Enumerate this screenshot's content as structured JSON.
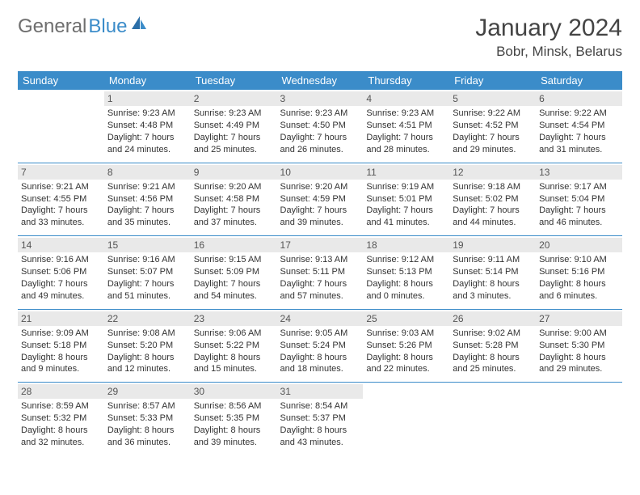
{
  "brand": {
    "word1": "General",
    "word2": "Blue"
  },
  "title": "January 2024",
  "location": "Bobr, Minsk, Belarus",
  "colors": {
    "header_bg": "#3b8cc9",
    "header_text": "#ffffff",
    "divider": "#3b8cc9",
    "daynum_bg": "#e9e9e9",
    "text": "#333333",
    "logo_gray": "#6e6e6e",
    "logo_blue": "#3b8cc9"
  },
  "weekdays": [
    "Sunday",
    "Monday",
    "Tuesday",
    "Wednesday",
    "Thursday",
    "Friday",
    "Saturday"
  ],
  "weeks": [
    [
      {
        "day": "",
        "sunrise": "",
        "sunset": "",
        "daylight": ""
      },
      {
        "day": "1",
        "sunrise": "Sunrise: 9:23 AM",
        "sunset": "Sunset: 4:48 PM",
        "daylight": "Daylight: 7 hours and 24 minutes."
      },
      {
        "day": "2",
        "sunrise": "Sunrise: 9:23 AM",
        "sunset": "Sunset: 4:49 PM",
        "daylight": "Daylight: 7 hours and 25 minutes."
      },
      {
        "day": "3",
        "sunrise": "Sunrise: 9:23 AM",
        "sunset": "Sunset: 4:50 PM",
        "daylight": "Daylight: 7 hours and 26 minutes."
      },
      {
        "day": "4",
        "sunrise": "Sunrise: 9:23 AM",
        "sunset": "Sunset: 4:51 PM",
        "daylight": "Daylight: 7 hours and 28 minutes."
      },
      {
        "day": "5",
        "sunrise": "Sunrise: 9:22 AM",
        "sunset": "Sunset: 4:52 PM",
        "daylight": "Daylight: 7 hours and 29 minutes."
      },
      {
        "day": "6",
        "sunrise": "Sunrise: 9:22 AM",
        "sunset": "Sunset: 4:54 PM",
        "daylight": "Daylight: 7 hours and 31 minutes."
      }
    ],
    [
      {
        "day": "7",
        "sunrise": "Sunrise: 9:21 AM",
        "sunset": "Sunset: 4:55 PM",
        "daylight": "Daylight: 7 hours and 33 minutes."
      },
      {
        "day": "8",
        "sunrise": "Sunrise: 9:21 AM",
        "sunset": "Sunset: 4:56 PM",
        "daylight": "Daylight: 7 hours and 35 minutes."
      },
      {
        "day": "9",
        "sunrise": "Sunrise: 9:20 AM",
        "sunset": "Sunset: 4:58 PM",
        "daylight": "Daylight: 7 hours and 37 minutes."
      },
      {
        "day": "10",
        "sunrise": "Sunrise: 9:20 AM",
        "sunset": "Sunset: 4:59 PM",
        "daylight": "Daylight: 7 hours and 39 minutes."
      },
      {
        "day": "11",
        "sunrise": "Sunrise: 9:19 AM",
        "sunset": "Sunset: 5:01 PM",
        "daylight": "Daylight: 7 hours and 41 minutes."
      },
      {
        "day": "12",
        "sunrise": "Sunrise: 9:18 AM",
        "sunset": "Sunset: 5:02 PM",
        "daylight": "Daylight: 7 hours and 44 minutes."
      },
      {
        "day": "13",
        "sunrise": "Sunrise: 9:17 AM",
        "sunset": "Sunset: 5:04 PM",
        "daylight": "Daylight: 7 hours and 46 minutes."
      }
    ],
    [
      {
        "day": "14",
        "sunrise": "Sunrise: 9:16 AM",
        "sunset": "Sunset: 5:06 PM",
        "daylight": "Daylight: 7 hours and 49 minutes."
      },
      {
        "day": "15",
        "sunrise": "Sunrise: 9:16 AM",
        "sunset": "Sunset: 5:07 PM",
        "daylight": "Daylight: 7 hours and 51 minutes."
      },
      {
        "day": "16",
        "sunrise": "Sunrise: 9:15 AM",
        "sunset": "Sunset: 5:09 PM",
        "daylight": "Daylight: 7 hours and 54 minutes."
      },
      {
        "day": "17",
        "sunrise": "Sunrise: 9:13 AM",
        "sunset": "Sunset: 5:11 PM",
        "daylight": "Daylight: 7 hours and 57 minutes."
      },
      {
        "day": "18",
        "sunrise": "Sunrise: 9:12 AM",
        "sunset": "Sunset: 5:13 PM",
        "daylight": "Daylight: 8 hours and 0 minutes."
      },
      {
        "day": "19",
        "sunrise": "Sunrise: 9:11 AM",
        "sunset": "Sunset: 5:14 PM",
        "daylight": "Daylight: 8 hours and 3 minutes."
      },
      {
        "day": "20",
        "sunrise": "Sunrise: 9:10 AM",
        "sunset": "Sunset: 5:16 PM",
        "daylight": "Daylight: 8 hours and 6 minutes."
      }
    ],
    [
      {
        "day": "21",
        "sunrise": "Sunrise: 9:09 AM",
        "sunset": "Sunset: 5:18 PM",
        "daylight": "Daylight: 8 hours and 9 minutes."
      },
      {
        "day": "22",
        "sunrise": "Sunrise: 9:08 AM",
        "sunset": "Sunset: 5:20 PM",
        "daylight": "Daylight: 8 hours and 12 minutes."
      },
      {
        "day": "23",
        "sunrise": "Sunrise: 9:06 AM",
        "sunset": "Sunset: 5:22 PM",
        "daylight": "Daylight: 8 hours and 15 minutes."
      },
      {
        "day": "24",
        "sunrise": "Sunrise: 9:05 AM",
        "sunset": "Sunset: 5:24 PM",
        "daylight": "Daylight: 8 hours and 18 minutes."
      },
      {
        "day": "25",
        "sunrise": "Sunrise: 9:03 AM",
        "sunset": "Sunset: 5:26 PM",
        "daylight": "Daylight: 8 hours and 22 minutes."
      },
      {
        "day": "26",
        "sunrise": "Sunrise: 9:02 AM",
        "sunset": "Sunset: 5:28 PM",
        "daylight": "Daylight: 8 hours and 25 minutes."
      },
      {
        "day": "27",
        "sunrise": "Sunrise: 9:00 AM",
        "sunset": "Sunset: 5:30 PM",
        "daylight": "Daylight: 8 hours and 29 minutes."
      }
    ],
    [
      {
        "day": "28",
        "sunrise": "Sunrise: 8:59 AM",
        "sunset": "Sunset: 5:32 PM",
        "daylight": "Daylight: 8 hours and 32 minutes."
      },
      {
        "day": "29",
        "sunrise": "Sunrise: 8:57 AM",
        "sunset": "Sunset: 5:33 PM",
        "daylight": "Daylight: 8 hours and 36 minutes."
      },
      {
        "day": "30",
        "sunrise": "Sunrise: 8:56 AM",
        "sunset": "Sunset: 5:35 PM",
        "daylight": "Daylight: 8 hours and 39 minutes."
      },
      {
        "day": "31",
        "sunrise": "Sunrise: 8:54 AM",
        "sunset": "Sunset: 5:37 PM",
        "daylight": "Daylight: 8 hours and 43 minutes."
      },
      {
        "day": "",
        "sunrise": "",
        "sunset": "",
        "daylight": ""
      },
      {
        "day": "",
        "sunrise": "",
        "sunset": "",
        "daylight": ""
      },
      {
        "day": "",
        "sunrise": "",
        "sunset": "",
        "daylight": ""
      }
    ]
  ]
}
